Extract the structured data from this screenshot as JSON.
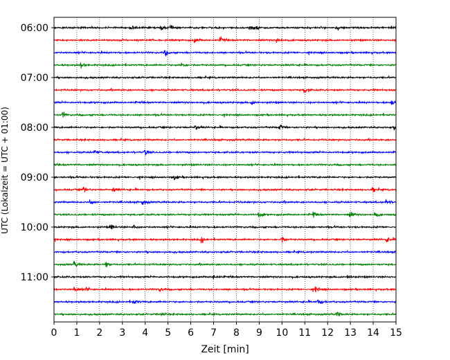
{
  "chart_data": {
    "type": "line",
    "title": "",
    "xlabel": "Zeit  [min]",
    "ylabel": "UTC (Lokalzeit = UTC + 01:00)",
    "xlim": [
      0,
      15
    ],
    "x_ticks": [
      0,
      1,
      2,
      3,
      4,
      5,
      6,
      7,
      8,
      9,
      10,
      11,
      12,
      13,
      14,
      15
    ],
    "x_tick_labels": [
      "0",
      "1",
      "2",
      "3",
      "4",
      "5",
      "6",
      "7",
      "8",
      "9",
      "10",
      "11",
      "12",
      "13",
      "14",
      "15"
    ],
    "y_tick_labels": [
      "06:00",
      "07:00",
      "08:00",
      "09:00",
      "10:00",
      "11:00"
    ],
    "y_tick_rows": [
      0,
      4,
      8,
      12,
      16,
      20
    ],
    "grid": "vertical dotted at each minute",
    "trace_interval_min": 15,
    "color_cycle": [
      "#000000",
      "#ff0000",
      "#0000ff",
      "#008000"
    ],
    "traces": [
      {
        "start": "06:00",
        "color": "#000000",
        "bursts": [
          3.4,
          4.7,
          5.1,
          8.6,
          8.9,
          12.4,
          14.8
        ]
      },
      {
        "start": "06:15",
        "color": "#ff0000",
        "bursts": [
          6.2,
          7.3,
          9.8
        ]
      },
      {
        "start": "06:30",
        "color": "#0000ff",
        "bursts": [
          4.9
        ]
      },
      {
        "start": "06:45",
        "color": "#008000",
        "bursts": [
          1.2,
          5.6
        ]
      },
      {
        "start": "07:00",
        "color": "#000000",
        "bursts": []
      },
      {
        "start": "07:15",
        "color": "#ff0000",
        "bursts": [
          11.0
        ]
      },
      {
        "start": "07:30",
        "color": "#0000ff",
        "bursts": [
          8.7,
          14.8
        ]
      },
      {
        "start": "07:45",
        "color": "#008000",
        "bursts": [
          0.4
        ]
      },
      {
        "start": "08:00",
        "color": "#000000",
        "bursts": [
          6.2,
          9.9,
          14.9
        ]
      },
      {
        "start": "08:15",
        "color": "#ff0000",
        "bursts": []
      },
      {
        "start": "08:30",
        "color": "#0000ff",
        "bursts": [
          1.8,
          4.0
        ]
      },
      {
        "start": "08:45",
        "color": "#008000",
        "bursts": []
      },
      {
        "start": "09:00",
        "color": "#000000",
        "bursts": [
          5.3
        ]
      },
      {
        "start": "09:15",
        "color": "#ff0000",
        "bursts": [
          1.3,
          2.6,
          14.0
        ]
      },
      {
        "start": "09:30",
        "color": "#0000ff",
        "bursts": [
          1.6,
          3.9,
          14.6
        ]
      },
      {
        "start": "09:45",
        "color": "#008000",
        "bursts": [
          9.0,
          11.4,
          13.0,
          14.1
        ]
      },
      {
        "start": "10:00",
        "color": "#000000",
        "bursts": [
          2.5,
          3.5
        ]
      },
      {
        "start": "10:15",
        "color": "#ff0000",
        "bursts": [
          6.5,
          10.0,
          14.6
        ]
      },
      {
        "start": "10:30",
        "color": "#0000ff",
        "bursts": []
      },
      {
        "start": "10:45",
        "color": "#008000",
        "bursts": [
          0.9,
          2.3
        ]
      },
      {
        "start": "11:00",
        "color": "#000000",
        "bursts": [
          7.0,
          12.9
        ]
      },
      {
        "start": "11:15",
        "color": "#ff0000",
        "bursts": [
          0.9,
          1.4,
          4.6,
          11.5
        ]
      },
      {
        "start": "11:30",
        "color": "#0000ff",
        "bursts": [
          3.5,
          11.6
        ]
      },
      {
        "start": "11:45",
        "color": "#008000",
        "bursts": [
          4.7,
          12.4
        ]
      }
    ]
  }
}
